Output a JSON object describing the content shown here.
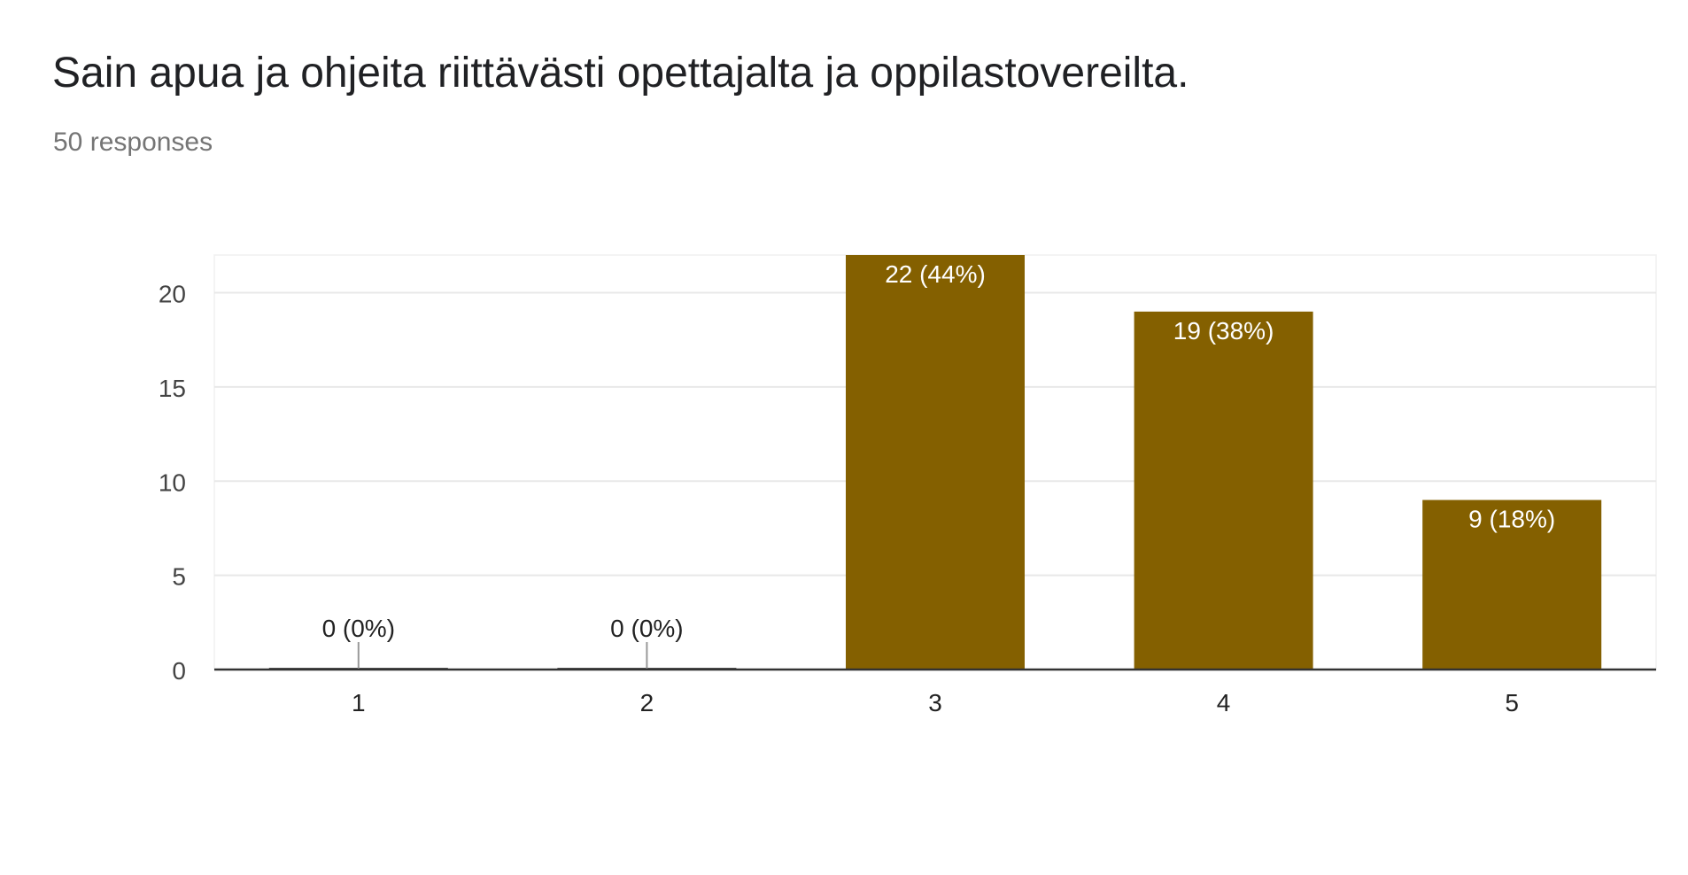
{
  "header": {
    "title": "Sain apua ja ohjeita riittävästi opettajalta ja oppilastovereilta.",
    "responses": "50 responses"
  },
  "chart_data": {
    "type": "bar",
    "categories": [
      "1",
      "2",
      "3",
      "4",
      "5"
    ],
    "values": [
      0,
      0,
      22,
      19,
      9
    ],
    "labels": [
      "0 (0%)",
      "0 (0%)",
      "22 (44%)",
      "19 (38%)",
      "9 (18%)"
    ],
    "yticks": [
      0,
      5,
      10,
      15,
      20
    ],
    "ylim": [
      0,
      22
    ],
    "grid": true,
    "bar_color": "#846000",
    "grid_color": "#e8e8e8",
    "axis_color": "#333333"
  }
}
